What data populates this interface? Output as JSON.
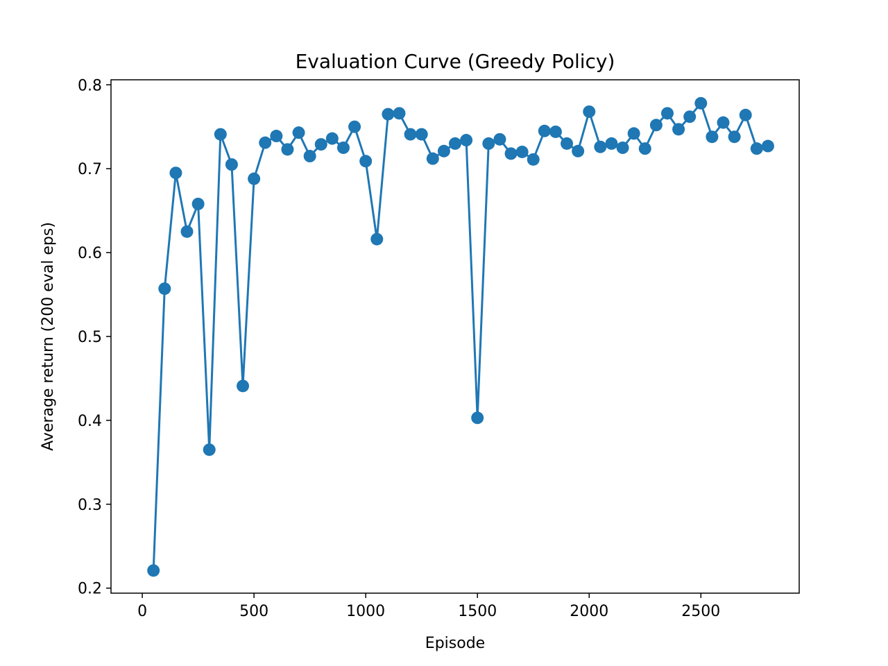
{
  "chart_data": {
    "type": "line",
    "title": "Evaluation Curve (Greedy Policy)",
    "xlabel": "Episode",
    "ylabel": "Average return (200 eval eps)",
    "xlim": [
      -140,
      2940
    ],
    "ylim": [
      0.194,
      0.806
    ],
    "x_ticks": [
      0,
      500,
      1000,
      1500,
      2000,
      2500
    ],
    "x_tick_labels": [
      "0",
      "500",
      "1000",
      "1500",
      "2000",
      "2500"
    ],
    "y_ticks": [
      0.2,
      0.3,
      0.4,
      0.5,
      0.6,
      0.7,
      0.8
    ],
    "y_tick_labels": [
      "0.2",
      "0.3",
      "0.4",
      "0.5",
      "0.6",
      "0.7",
      "0.8"
    ],
    "grid": false,
    "marker": "circle",
    "color": "#1f77b4",
    "series": [
      {
        "x": [
          50,
          100,
          150,
          200,
          250,
          300,
          350,
          400,
          450,
          500,
          550,
          600,
          650,
          700,
          750,
          800,
          850,
          900,
          950,
          1000,
          1050,
          1100,
          1150,
          1200,
          1250,
          1300,
          1350,
          1400,
          1450,
          1500,
          1550,
          1600,
          1650,
          1700,
          1750,
          1800,
          1850,
          1900,
          1950,
          2000,
          2050,
          2100,
          2150,
          2200,
          2250,
          2300,
          2350,
          2400,
          2450,
          2500,
          2550,
          2600,
          2650,
          2700,
          2750,
          2800
        ],
        "values": [
          0.221,
          0.557,
          0.695,
          0.625,
          0.658,
          0.365,
          0.741,
          0.705,
          0.441,
          0.688,
          0.731,
          0.739,
          0.723,
          0.743,
          0.715,
          0.729,
          0.736,
          0.725,
          0.75,
          0.709,
          0.616,
          0.765,
          0.766,
          0.741,
          0.741,
          0.712,
          0.721,
          0.73,
          0.734,
          0.403,
          0.73,
          0.735,
          0.718,
          0.72,
          0.711,
          0.745,
          0.744,
          0.73,
          0.721,
          0.768,
          0.726,
          0.73,
          0.725,
          0.742,
          0.724,
          0.752,
          0.766,
          0.747,
          0.762,
          0.778,
          0.738,
          0.755,
          0.738,
          0.764,
          0.724,
          0.727
        ]
      }
    ]
  }
}
